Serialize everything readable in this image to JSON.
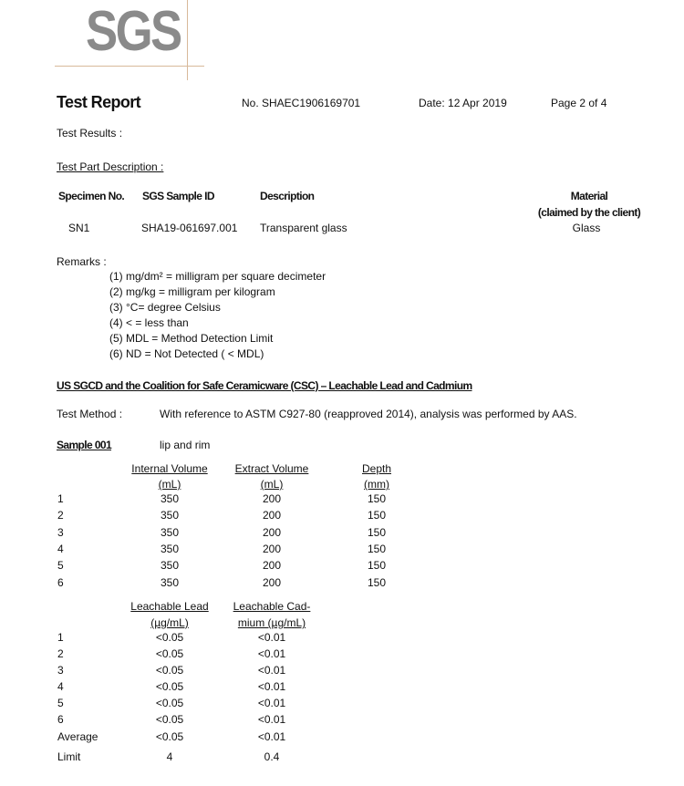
{
  "logo": {
    "text": "SGS"
  },
  "header": {
    "title": "Test Report",
    "report_no": "No. SHAEC1906169701",
    "date": "Date: 12 Apr 2019",
    "page": "Page 2 of 4"
  },
  "test_results_label": "Test Results :",
  "test_part_label": "Test Part Description :",
  "specimen_table": {
    "headers": [
      "Specimen No.",
      "SGS Sample ID",
      "Description",
      "Material",
      "(claimed by the client)"
    ],
    "row": [
      "SN1",
      "SHA19-061697.001",
      "Transparent glass",
      "Glass"
    ]
  },
  "remarks": {
    "label": "Remarks :",
    "items": [
      "(1) mg/dm² = milligram per square decimeter",
      "(2) mg/kg = milligram per kilogram",
      "(3) °C= degree Celsius",
      "(4) < = less than",
      "(5) MDL = Method Detection Limit",
      "(6) ND = Not Detected ( < MDL)"
    ]
  },
  "section_title": "US SGCD and the Coalition for Safe Ceramicware (CSC) – Leachable Lead and Cadmium",
  "test_method": {
    "label": "Test Method :",
    "text": "With reference to ASTM C927-80 (reapproved 2014), analysis was performed by AAS."
  },
  "sample": {
    "label": "Sample 001",
    "part": "lip and rim"
  },
  "table1": {
    "headers": [
      [
        "Internal Volume",
        "(mL)"
      ],
      [
        "Extract Volume",
        "(mL)"
      ],
      [
        "Depth",
        "(mm)"
      ]
    ],
    "rows": [
      [
        "1",
        "350",
        "200",
        "150"
      ],
      [
        "2",
        "350",
        "200",
        "150"
      ],
      [
        "3",
        "350",
        "200",
        "150"
      ],
      [
        "4",
        "350",
        "200",
        "150"
      ],
      [
        "5",
        "350",
        "200",
        "150"
      ],
      [
        "6",
        "350",
        "200",
        "150"
      ]
    ]
  },
  "table2": {
    "headers": [
      [
        "Leachable Lead",
        "(µg/mL)"
      ],
      [
        "Leachable Cad-",
        "mium (µg/mL)"
      ]
    ],
    "rows": [
      [
        "1",
        "<0.05",
        "<0.01"
      ],
      [
        "2",
        "<0.05",
        "<0.01"
      ],
      [
        "3",
        "<0.05",
        "<0.01"
      ],
      [
        "4",
        "<0.05",
        "<0.01"
      ],
      [
        "5",
        "<0.05",
        "<0.01"
      ],
      [
        "6",
        "<0.05",
        "<0.01"
      ],
      [
        "Average",
        "<0.05",
        "<0.01"
      ],
      [
        "Limit",
        "4",
        "0.4"
      ]
    ]
  }
}
